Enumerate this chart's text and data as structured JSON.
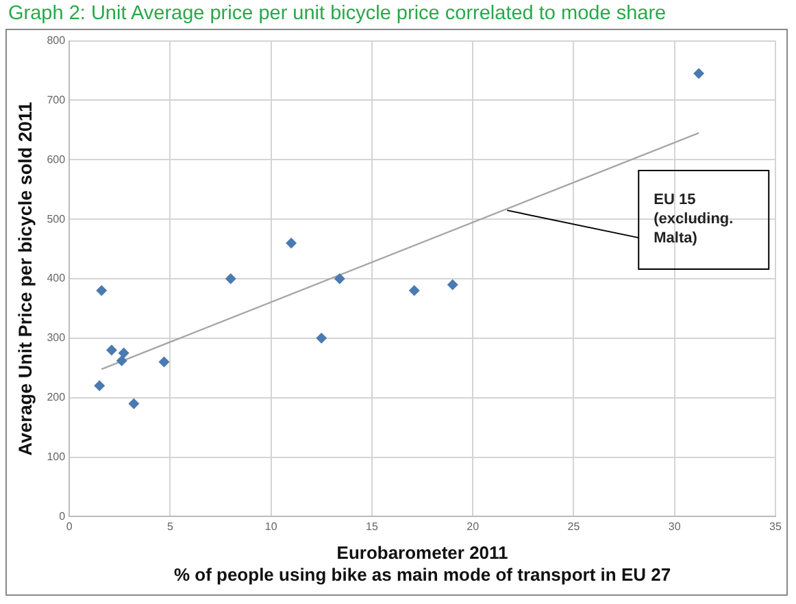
{
  "chart_data": {
    "type": "scatter",
    "title": "Graph 2: Unit Average price per unit bicycle price correlated to mode share",
    "xlabel": "Eurobarometer 2011\n% of people using bike as main mode of transport in EU 27",
    "ylabel": "Average Unit Price per bicycle sold 2011",
    "series": [
      {
        "type": "scatter",
        "marker": "diamond",
        "color": "#4a7ab0",
        "x": [
          1.6,
          1.5,
          2.1,
          2.6,
          2.7,
          3.2,
          4.7,
          8,
          11,
          12.5,
          13.4,
          17.1,
          19,
          31.2
        ],
        "values": [
          380,
          220,
          280,
          262,
          275,
          190,
          260,
          400,
          460,
          300,
          400,
          380,
          390,
          745
        ]
      },
      {
        "type": "line",
        "marker": "none",
        "color": "#a6a6a6",
        "x": [
          1.6,
          31.2
        ],
        "values": [
          248,
          645
        ]
      }
    ],
    "annotations": [
      {
        "text": "EU 15\n(excluding.\nMalta)",
        "x": 21.7,
        "y": 515
      }
    ],
    "xlim": [
      0,
      35
    ],
    "xticks": [
      0,
      5,
      10,
      15,
      20,
      25,
      30,
      35
    ],
    "ylim": [
      0,
      800
    ],
    "yticks": [
      0,
      100,
      200,
      300,
      400,
      500,
      600,
      700,
      800
    ],
    "grid": true,
    "legend": false
  }
}
